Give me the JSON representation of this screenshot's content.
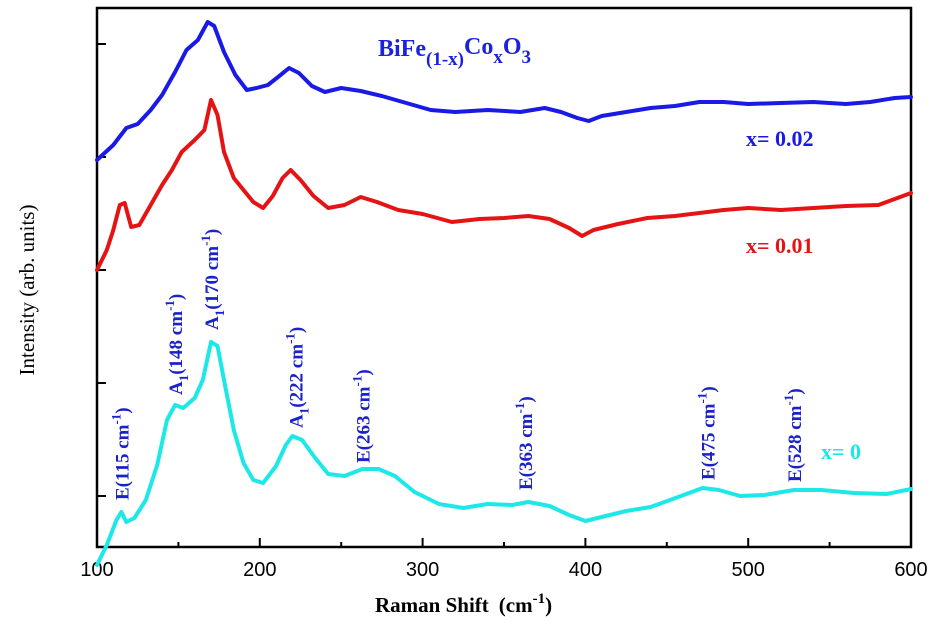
{
  "chart_data": {
    "type": "line",
    "title": "",
    "xlabel": "Raman Shift",
    "xlabel_unit": "(cm",
    "xlabel_unit_sup": "-1",
    "xlabel_unit_close": ")",
    "ylabel": "Intensity (arb. units)",
    "xlim": [
      100,
      600
    ],
    "x_ticks": [
      "100",
      "200",
      "300",
      "400",
      "500",
      "600"
    ],
    "y_tick_labels": "none",
    "grid": false,
    "formula": {
      "base": "BiFe",
      "sub1": "(1-x)",
      "mid": "Co",
      "sub2": "x",
      "end": "O",
      "sub3": "3"
    },
    "series": [
      {
        "name": "x= 0.02",
        "color": "#1a1ae6",
        "points": [
          [
            100,
            160
          ],
          [
            110,
            145
          ],
          [
            118,
            128
          ],
          [
            125,
            124
          ],
          [
            133,
            110
          ],
          [
            140,
            95
          ],
          [
            148,
            72
          ],
          [
            155,
            50
          ],
          [
            162,
            40
          ],
          [
            168,
            22
          ],
          [
            172,
            26
          ],
          [
            178,
            52
          ],
          [
            185,
            75
          ],
          [
            192,
            90
          ],
          [
            198,
            88
          ],
          [
            205,
            85
          ],
          [
            212,
            76
          ],
          [
            218,
            68
          ],
          [
            224,
            73
          ],
          [
            232,
            86
          ],
          [
            240,
            92
          ],
          [
            250,
            88
          ],
          [
            262,
            91
          ],
          [
            275,
            96
          ],
          [
            290,
            103
          ],
          [
            305,
            110
          ],
          [
            320,
            112
          ],
          [
            340,
            110
          ],
          [
            360,
            112
          ],
          [
            375,
            108
          ],
          [
            385,
            112
          ],
          [
            395,
            118
          ],
          [
            402,
            121
          ],
          [
            410,
            116
          ],
          [
            425,
            112
          ],
          [
            440,
            108
          ],
          [
            455,
            106
          ],
          [
            470,
            102
          ],
          [
            485,
            102
          ],
          [
            500,
            104
          ],
          [
            520,
            103
          ],
          [
            540,
            102
          ],
          [
            560,
            104
          ],
          [
            575,
            102
          ],
          [
            590,
            98
          ],
          [
            600,
            97
          ]
        ]
      },
      {
        "name": "x= 0.01",
        "color": "#e51414",
        "points": [
          [
            100,
            270
          ],
          [
            106,
            250
          ],
          [
            110,
            230
          ],
          [
            114,
            205
          ],
          [
            117,
            203
          ],
          [
            121,
            227
          ],
          [
            126,
            225
          ],
          [
            133,
            205
          ],
          [
            140,
            185
          ],
          [
            146,
            170
          ],
          [
            152,
            152
          ],
          [
            160,
            140
          ],
          [
            166,
            130
          ],
          [
            170,
            100
          ],
          [
            174,
            115
          ],
          [
            178,
            152
          ],
          [
            184,
            178
          ],
          [
            190,
            190
          ],
          [
            196,
            202
          ],
          [
            202,
            208
          ],
          [
            208,
            196
          ],
          [
            214,
            178
          ],
          [
            219,
            170
          ],
          [
            225,
            180
          ],
          [
            233,
            196
          ],
          [
            242,
            208
          ],
          [
            252,
            205
          ],
          [
            262,
            197
          ],
          [
            272,
            202
          ],
          [
            285,
            210
          ],
          [
            300,
            214
          ],
          [
            318,
            222
          ],
          [
            335,
            219
          ],
          [
            350,
            218
          ],
          [
            365,
            216
          ],
          [
            378,
            219
          ],
          [
            390,
            228
          ],
          [
            398,
            236
          ],
          [
            405,
            230
          ],
          [
            420,
            224
          ],
          [
            438,
            218
          ],
          [
            455,
            216
          ],
          [
            470,
            213
          ],
          [
            485,
            210
          ],
          [
            500,
            208
          ],
          [
            520,
            210
          ],
          [
            540,
            208
          ],
          [
            560,
            206
          ],
          [
            580,
            205
          ],
          [
            600,
            193
          ]
        ]
      },
      {
        "name": "x= 0",
        "color": "#1de8e8",
        "points": [
          [
            100,
            565
          ],
          [
            106,
            545
          ],
          [
            112,
            520
          ],
          [
            115,
            512
          ],
          [
            118,
            522
          ],
          [
            123,
            518
          ],
          [
            130,
            500
          ],
          [
            137,
            465
          ],
          [
            143,
            420
          ],
          [
            148,
            405
          ],
          [
            153,
            408
          ],
          [
            160,
            398
          ],
          [
            165,
            380
          ],
          [
            170,
            342
          ],
          [
            174,
            346
          ],
          [
            178,
            380
          ],
          [
            184,
            430
          ],
          [
            190,
            463
          ],
          [
            196,
            480
          ],
          [
            202,
            483
          ],
          [
            210,
            466
          ],
          [
            216,
            445
          ],
          [
            220,
            436
          ],
          [
            226,
            440
          ],
          [
            234,
            458
          ],
          [
            242,
            474
          ],
          [
            252,
            476
          ],
          [
            263,
            469
          ],
          [
            273,
            469
          ],
          [
            283,
            476
          ],
          [
            295,
            492
          ],
          [
            310,
            504
          ],
          [
            325,
            508
          ],
          [
            340,
            504
          ],
          [
            355,
            505
          ],
          [
            365,
            502
          ],
          [
            378,
            506
          ],
          [
            390,
            515
          ],
          [
            400,
            521
          ],
          [
            410,
            517
          ],
          [
            425,
            511
          ],
          [
            440,
            507
          ],
          [
            452,
            500
          ],
          [
            462,
            494
          ],
          [
            472,
            488
          ],
          [
            482,
            490
          ],
          [
            495,
            496
          ],
          [
            510,
            495
          ],
          [
            528,
            490
          ],
          [
            545,
            490
          ],
          [
            565,
            493
          ],
          [
            585,
            494
          ],
          [
            600,
            489
          ]
        ]
      }
    ],
    "series_labels": [
      {
        "text": "x= 0.02",
        "color": "#1a1ae6"
      },
      {
        "text": "x= 0.01",
        "color": "#e51414"
      },
      {
        "text": "x= 0",
        "color": "#1de8e8"
      }
    ],
    "annotations": [
      {
        "pre": "E(115 cm",
        "sup": "-1",
        "post": ")",
        "x": 115
      },
      {
        "pre": "A",
        "sub": "1",
        "mid": "(148 cm",
        "sup": "-1",
        "post": ")",
        "x": 148
      },
      {
        "pre": "A",
        "sub": "1",
        "mid": "(170 cm",
        "sup": "-1",
        "post": ")",
        "x": 170
      },
      {
        "pre": "A",
        "sub": "1",
        "mid": "(222 cm",
        "sup": "-1",
        "post": ")",
        "x": 222
      },
      {
        "pre": "E(263 cm",
        "sup": "-1",
        "post": ")",
        "x": 263
      },
      {
        "pre": "E(363 cm",
        "sup": "-1",
        "post": ")",
        "x": 363
      },
      {
        "pre": "E(475 cm",
        "sup": "-1",
        "post": ")",
        "x": 475
      },
      {
        "pre": "E(528 cm",
        "sup": "-1",
        "post": ")",
        "x": 528
      }
    ]
  }
}
